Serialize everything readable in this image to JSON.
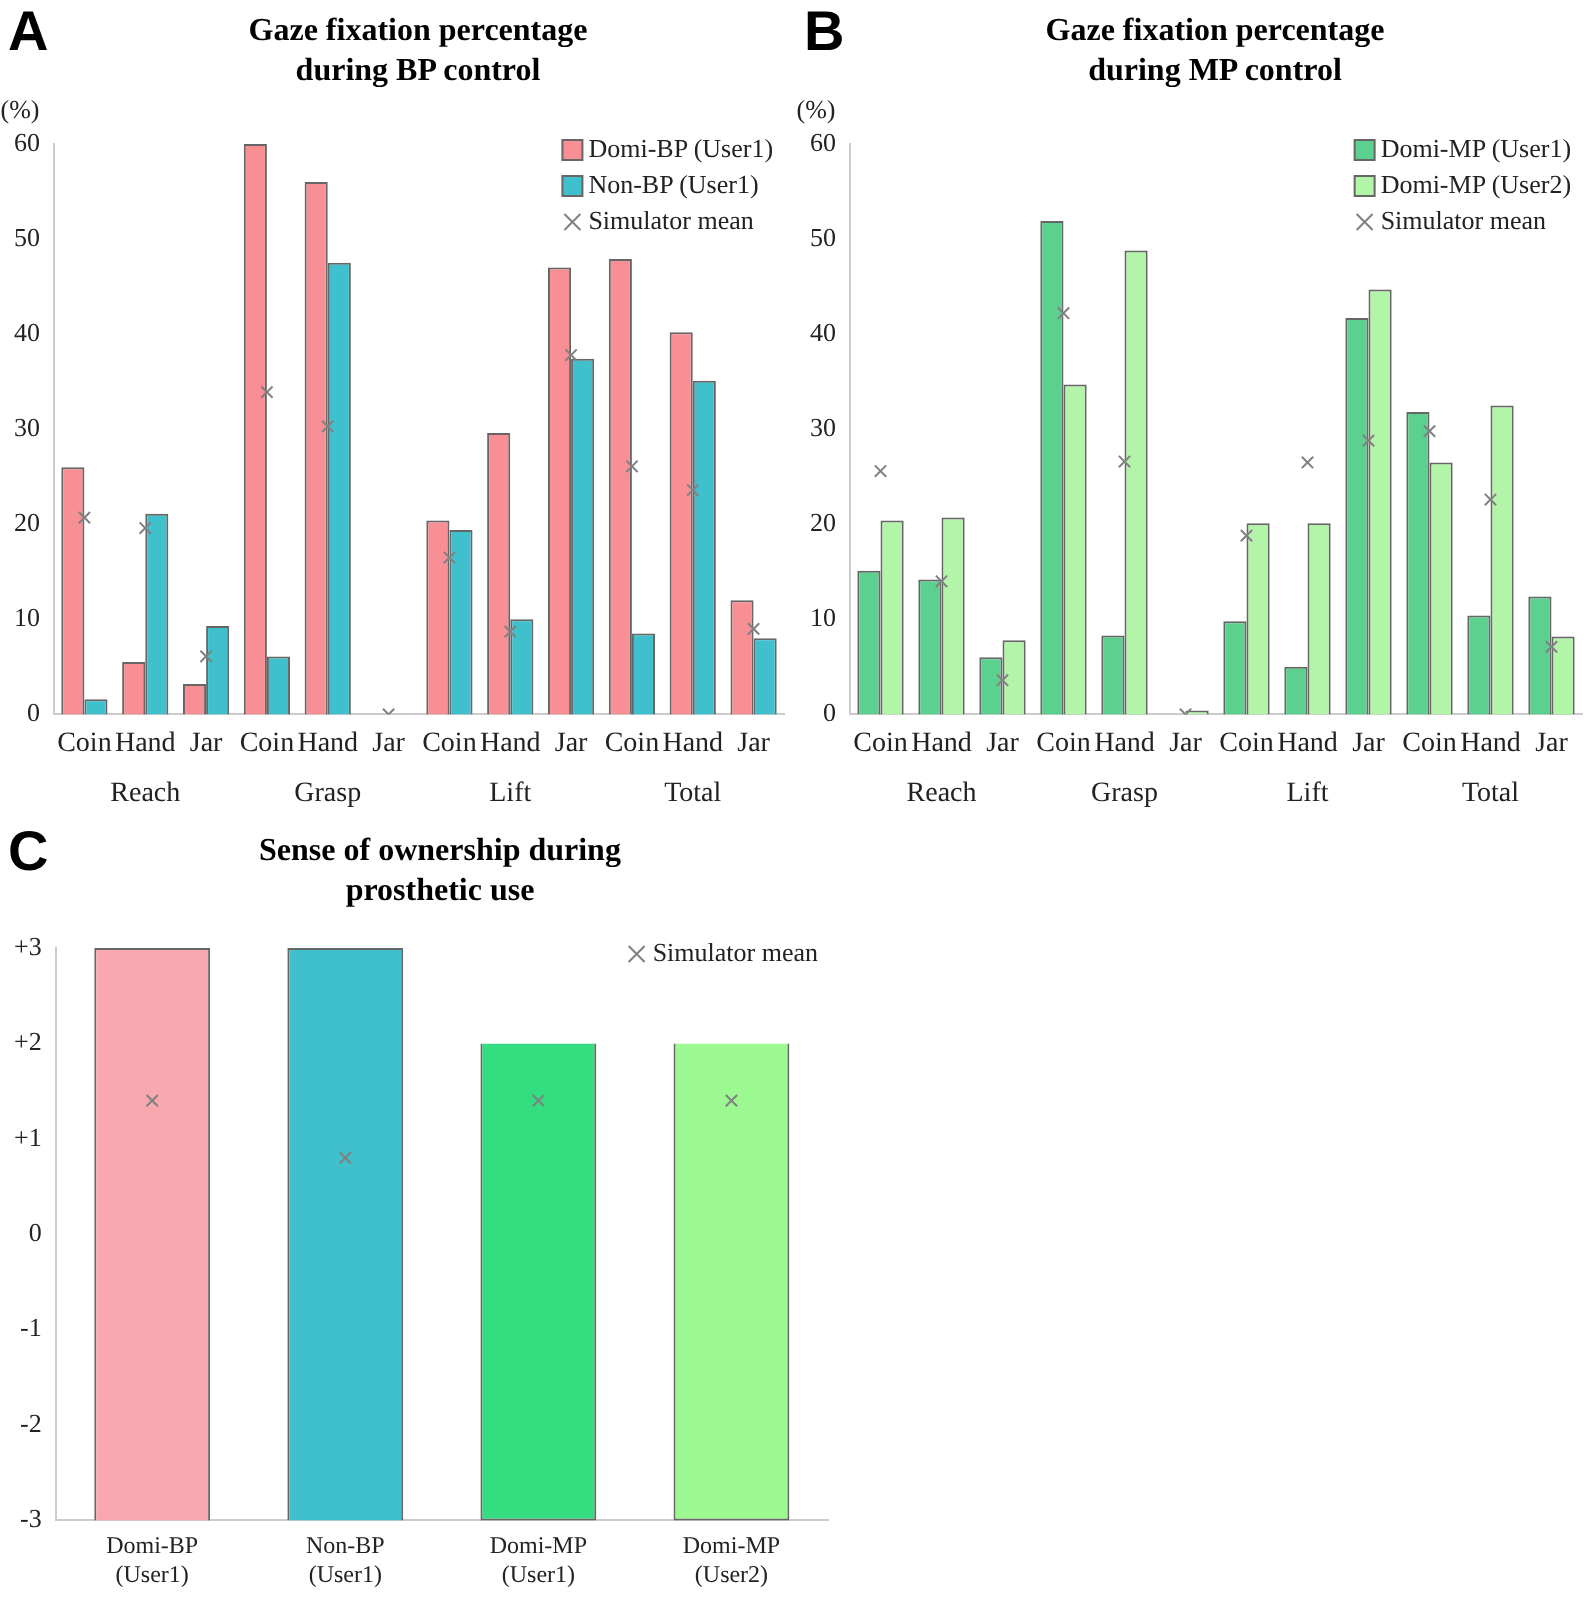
{
  "chart_data": [
    {
      "type": "bar",
      "title": "Gaze fixation percentage during BP control",
      "ylabel": "(%)",
      "annotations": [
        "A",
        "Reach",
        "Grasp",
        "Lift",
        "Total"
      ],
      "categories": [
        "Coin",
        "Hand",
        "Jar",
        "Coin",
        "Hand",
        "Jar",
        "Coin",
        "Hand",
        "Jar",
        "Coin",
        "Hand",
        "Jar"
      ],
      "series": [
        {
          "name": "Domi-BP (User1)",
          "color": "#f78f95",
          "values": [
            26,
            5.5,
            3.2,
            60,
            56,
            0,
            20.4,
            29.6,
            47,
            47.9,
            40.2,
            12
          ]
        },
        {
          "name": "Non-BP (User1)",
          "color": "#3fc0cc",
          "values": [
            1.6,
            21.1,
            9.3,
            6.1,
            47.5,
            0,
            19.4,
            10,
            37.4,
            8.5,
            35.1,
            8
          ]
        },
        {
          "name": "Simulator mean",
          "type": "scatter",
          "color": "#808080",
          "values": [
            20.7,
            19.6,
            6.1,
            33.9,
            30.3,
            0,
            16.5,
            8.7,
            37.8,
            26.1,
            23.6,
            9
          ]
        }
      ],
      "ylim": [
        0,
        60
      ],
      "yticks": [
        0,
        10,
        20,
        30,
        40,
        50,
        60
      ],
      "legend": "top right",
      "marker": "cross"
    },
    {
      "type": "bar",
      "title": "Gaze fixation percentage during MP control",
      "ylabel": "(%)",
      "annotations": [
        "B",
        "Reach",
        "Grasp",
        "Lift",
        "Total"
      ],
      "categories": [
        "Coin",
        "Hand",
        "Jar",
        "Coin",
        "Hand",
        "Jar",
        "Coin",
        "Hand",
        "Jar",
        "Coin",
        "Hand",
        "Jar"
      ],
      "series": [
        {
          "name": "Domi-MP (User1)",
          "color": "#5cd08f",
          "values": [
            15.1,
            14.2,
            6,
            51.9,
            8.3,
            0,
            9.8,
            5,
            41.7,
            31.8,
            10.4,
            12.4
          ]
        },
        {
          "name": "Domi-MP (User2)",
          "color": "#b3f5a8",
          "values": [
            20.4,
            20.7,
            7.8,
            34.7,
            48.8,
            0.4,
            20.1,
            20.1,
            44.7,
            26.5,
            32.5,
            8.2
          ]
        },
        {
          "name": "Simulator mean",
          "type": "scatter",
          "color": "#808080",
          "values": [
            25.6,
            14,
            3.6,
            42.2,
            26.6,
            0,
            18.8,
            26.5,
            28.8,
            29.8,
            22.6,
            7.1
          ]
        }
      ],
      "ylim": [
        0,
        60
      ],
      "yticks": [
        0,
        10,
        20,
        30,
        40,
        50,
        60
      ],
      "legend": "top right",
      "marker": "cross"
    },
    {
      "type": "bar",
      "title": "Sense of ownership during prosthetic use",
      "annotations": [
        "C"
      ],
      "categories": [
        "Domi-BP (User1)",
        "Non-BP (User1)",
        "Domi-MP (User1)",
        "Domi-MP (User2)"
      ],
      "series": [
        {
          "colors": [
            "#f9a8b0",
            "#3fc0cc",
            "#33dd80",
            "#9cf890"
          ],
          "base": [
            -3,
            -3,
            -3,
            -3
          ],
          "values": [
            6,
            6,
            5,
            5
          ]
        },
        {
          "name": "Simulator mean",
          "type": "scatter",
          "color": "#808080",
          "values": [
            1.4,
            0.8,
            1.4,
            1.4
          ]
        }
      ],
      "ylim": [
        -3,
        3
      ],
      "yticks": [
        {
          "value": 3,
          "label": "+3"
        },
        {
          "value": 2,
          "label": "+2"
        },
        {
          "value": 1,
          "label": "+1"
        },
        0,
        -1,
        -2,
        -3
      ],
      "legend": "top right",
      "marker": "cross"
    }
  ]
}
